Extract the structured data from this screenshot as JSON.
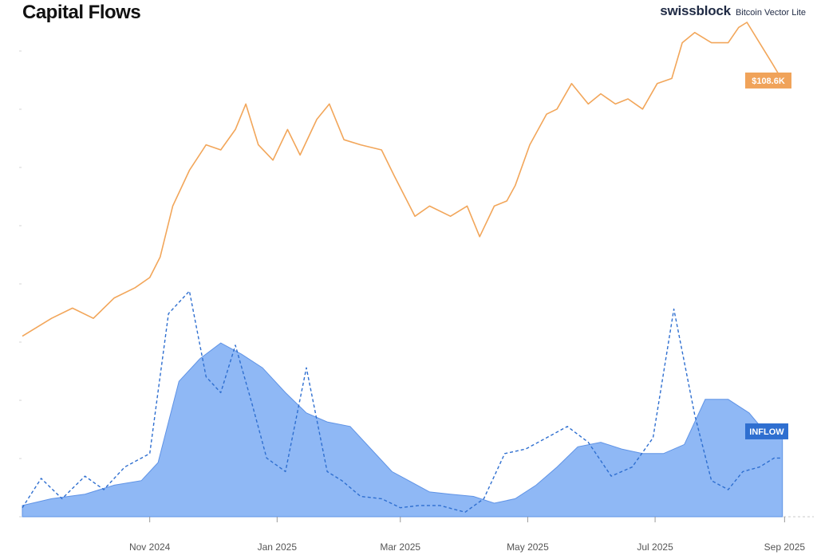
{
  "header": {
    "title": "Capital Flows",
    "brand_name": "swissblock",
    "brand_product": "Bitcoin Vector Lite"
  },
  "chart_data": {
    "type": "line",
    "title": "Capital Flows",
    "xlabel": "",
    "ylabel": "",
    "x_ticks": [
      "Nov 2024",
      "Jan 2025",
      "Mar 2025",
      "May 2025",
      "Jul 2025",
      "Sep 2025"
    ],
    "x_range": [
      "2024-09-01",
      "2025-09-15"
    ],
    "grid": false,
    "price_ylim": [
      40,
      115
    ],
    "flow_ylim": [
      0,
      100
    ],
    "series": [
      {
        "name": "",
        "kind": "line",
        "color": "#f2a65a",
        "end_label": "$108.6K",
        "dates": [
          "2024-09-01",
          "2024-09-15",
          "2024-09-25",
          "2024-10-05",
          "2024-10-15",
          "2024-10-25",
          "2024-11-01",
          "2024-11-06",
          "2024-11-12",
          "2024-11-20",
          "2024-11-28",
          "2024-12-05",
          "2024-12-12",
          "2024-12-17",
          "2024-12-23",
          "2024-12-30",
          "2025-01-06",
          "2025-01-12",
          "2025-01-20",
          "2025-01-26",
          "2025-02-02",
          "2025-02-10",
          "2025-02-20",
          "2025-02-26",
          "2025-03-03",
          "2025-03-08",
          "2025-03-15",
          "2025-03-25",
          "2025-04-02",
          "2025-04-08",
          "2025-04-15",
          "2025-04-21",
          "2025-04-25",
          "2025-05-02",
          "2025-05-10",
          "2025-05-15",
          "2025-05-22",
          "2025-05-30",
          "2025-06-05",
          "2025-06-12",
          "2025-06-18",
          "2025-06-25",
          "2025-07-02",
          "2025-07-09",
          "2025-07-14",
          "2025-07-20",
          "2025-07-28",
          "2025-08-05",
          "2025-08-10",
          "2025-08-14",
          "2025-08-20",
          "2025-08-26",
          "2025-08-31"
        ],
        "values": [
          58.5,
          62,
          64,
          62,
          66,
          68,
          70,
          74,
          84,
          91,
          96,
          95,
          99,
          104,
          96,
          93,
          99,
          94,
          101,
          104,
          97,
          96,
          95,
          90,
          86,
          82,
          84,
          82,
          84,
          78,
          84,
          85,
          88,
          96,
          102,
          103,
          108,
          104,
          106,
          104,
          105,
          103,
          108,
          109,
          116,
          118,
          116,
          116,
          119,
          120,
          116,
          112,
          108.6
        ]
      },
      {
        "name": "",
        "kind": "area",
        "color": "#8fb8f5",
        "end_label": "INFLOW",
        "dates": [
          "2024-09-01",
          "2024-09-15",
          "2024-10-01",
          "2024-10-15",
          "2024-10-28",
          "2024-11-05",
          "2024-11-15",
          "2024-11-25",
          "2024-12-05",
          "2024-12-15",
          "2024-12-25",
          "2025-01-05",
          "2025-01-15",
          "2025-01-25",
          "2025-02-05",
          "2025-02-15",
          "2025-02-25",
          "2025-03-05",
          "2025-03-15",
          "2025-03-25",
          "2025-04-05",
          "2025-04-15",
          "2025-04-25",
          "2025-05-05",
          "2025-05-15",
          "2025-05-25",
          "2025-06-05",
          "2025-06-15",
          "2025-06-25",
          "2025-07-05",
          "2025-07-15",
          "2025-07-25",
          "2025-08-05",
          "2025-08-15",
          "2025-08-25",
          "2025-08-31"
        ],
        "values": [
          5,
          8,
          10,
          14,
          16,
          24,
          60,
          70,
          77,
          72,
          66,
          55,
          46,
          42,
          40,
          30,
          20,
          16,
          11,
          10,
          9,
          6,
          8,
          14,
          22,
          31,
          33,
          30,
          28,
          28,
          32,
          52,
          52,
          46,
          35,
          35
        ]
      },
      {
        "name": "",
        "kind": "dashed-line",
        "color": "#2f6fd0",
        "dates": [
          "2024-09-01",
          "2024-09-10",
          "2024-09-20",
          "2024-10-01",
          "2024-10-10",
          "2024-10-20",
          "2024-11-01",
          "2024-11-10",
          "2024-11-20",
          "2024-11-28",
          "2024-12-05",
          "2024-12-12",
          "2024-12-20",
          "2024-12-27",
          "2025-01-05",
          "2025-01-15",
          "2025-01-25",
          "2025-02-01",
          "2025-02-10",
          "2025-02-20",
          "2025-03-01",
          "2025-03-10",
          "2025-03-20",
          "2025-04-01",
          "2025-04-10",
          "2025-04-20",
          "2025-04-30",
          "2025-05-10",
          "2025-05-20",
          "2025-05-30",
          "2025-06-10",
          "2025-06-20",
          "2025-06-30",
          "2025-07-10",
          "2025-07-20",
          "2025-07-28",
          "2025-08-05",
          "2025-08-12",
          "2025-08-20",
          "2025-08-27",
          "2025-08-31"
        ],
        "values": [
          4,
          17,
          8,
          18,
          12,
          22,
          28,
          90,
          100,
          62,
          55,
          76,
          50,
          26,
          20,
          66,
          20,
          16,
          9,
          8,
          4,
          5,
          5,
          2,
          8,
          28,
          30,
          35,
          40,
          33,
          18,
          22,
          35,
          92,
          45,
          16,
          12,
          20,
          22,
          26,
          26
        ]
      }
    ]
  }
}
